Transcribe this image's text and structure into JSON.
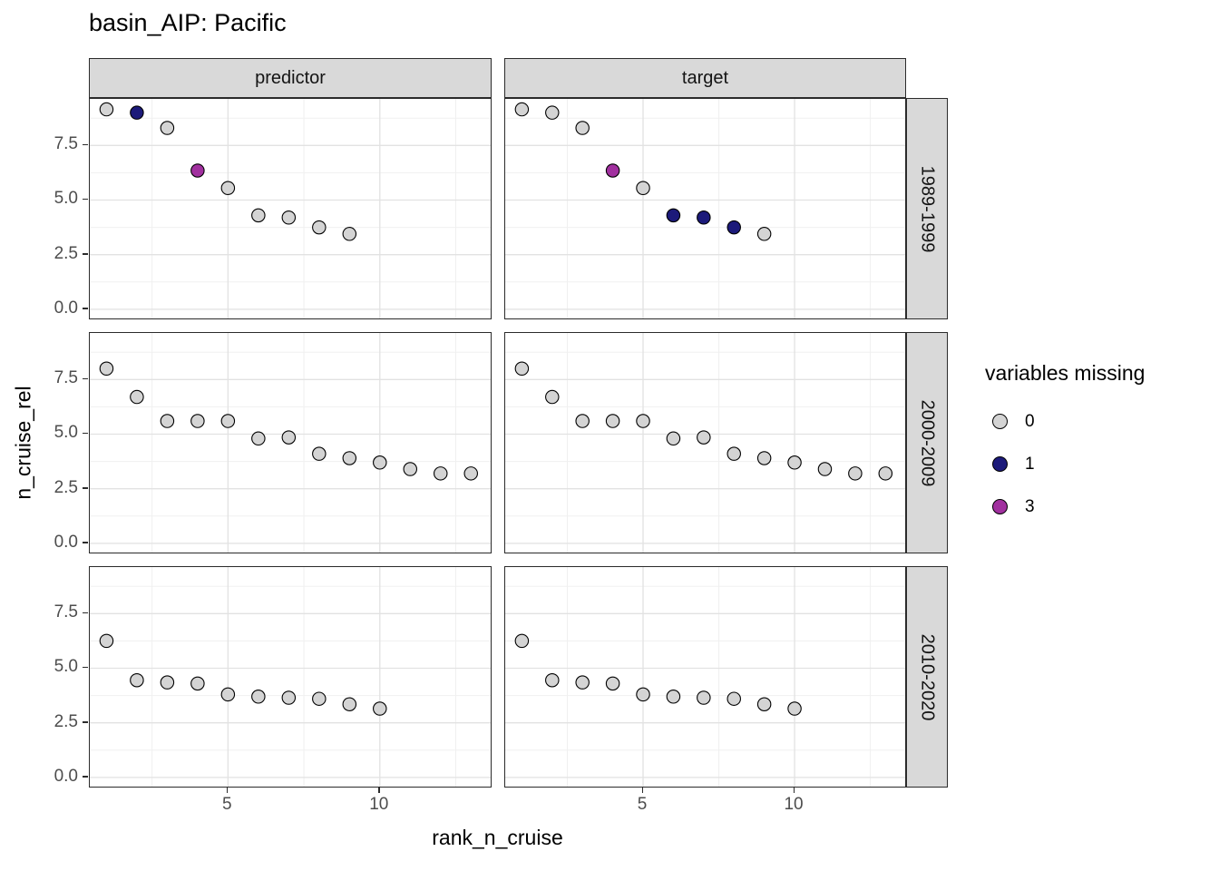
{
  "chart_data": {
    "type": "scatter",
    "title": "basin_AIP: Pacific",
    "xlabel": "rank_n_cruise",
    "ylabel": "n_cruise_rel",
    "xlim": [
      0.45,
      13.65
    ],
    "ylim": [
      -0.42,
      9.63
    ],
    "x_ticks": [
      5,
      10
    ],
    "x_tick_labels": [
      "5",
      "10"
    ],
    "x_minor": [
      2.5,
      7.5,
      12.5
    ],
    "y_ticks": [
      0,
      2.5,
      5,
      7.5
    ],
    "y_tick_labels": [
      "0.0",
      "2.5",
      "5.0",
      "7.5"
    ],
    "y_minor": [
      1.25,
      3.75,
      6.25,
      8.75
    ],
    "grid": true,
    "legend_position": "right",
    "facet_cols": [
      "predictor",
      "target"
    ],
    "facet_rows": [
      "1989-1999",
      "2000-2009",
      "2010-2020"
    ],
    "legend": {
      "title": "variables missing",
      "items": [
        {
          "label": "0",
          "color": "#d4d4d4"
        },
        {
          "label": "1",
          "color": "#1c1a7a"
        },
        {
          "label": "3",
          "color": "#a1309f"
        }
      ]
    },
    "panels": [
      {
        "col": "predictor",
        "row": "1989-1999",
        "points": [
          [
            1,
            9.15,
            0
          ],
          [
            2,
            9.0,
            1
          ],
          [
            3,
            8.3,
            0
          ],
          [
            4,
            6.35,
            3
          ],
          [
            5,
            5.55,
            0
          ],
          [
            6,
            4.3,
            0
          ],
          [
            7,
            4.2,
            0
          ],
          [
            8,
            3.75,
            0
          ],
          [
            9,
            3.45,
            0
          ]
        ]
      },
      {
        "col": "target",
        "row": "1989-1999",
        "points": [
          [
            1,
            9.15,
            0
          ],
          [
            2,
            9.0,
            0
          ],
          [
            3,
            8.3,
            0
          ],
          [
            4,
            6.35,
            3
          ],
          [
            5,
            5.55,
            0
          ],
          [
            6,
            4.3,
            1
          ],
          [
            7,
            4.2,
            1
          ],
          [
            8,
            3.75,
            1
          ],
          [
            9,
            3.45,
            0
          ]
        ]
      },
      {
        "col": "predictor",
        "row": "2000-2009",
        "points": [
          [
            1,
            8.0,
            0
          ],
          [
            2,
            6.7,
            0
          ],
          [
            3,
            5.6,
            0
          ],
          [
            4,
            5.6,
            0
          ],
          [
            5,
            5.6,
            0
          ],
          [
            6,
            4.8,
            0
          ],
          [
            7,
            4.85,
            0
          ],
          [
            8,
            4.1,
            0
          ],
          [
            9,
            3.9,
            0
          ],
          [
            10,
            3.7,
            0
          ],
          [
            11,
            3.4,
            0
          ],
          [
            12,
            3.2,
            0
          ],
          [
            13,
            3.2,
            0
          ]
        ]
      },
      {
        "col": "target",
        "row": "2000-2009",
        "points": [
          [
            1,
            8.0,
            0
          ],
          [
            2,
            6.7,
            0
          ],
          [
            3,
            5.6,
            0
          ],
          [
            4,
            5.6,
            0
          ],
          [
            5,
            5.6,
            0
          ],
          [
            6,
            4.8,
            0
          ],
          [
            7,
            4.85,
            0
          ],
          [
            8,
            4.1,
            0
          ],
          [
            9,
            3.9,
            0
          ],
          [
            10,
            3.7,
            0
          ],
          [
            11,
            3.4,
            0
          ],
          [
            12,
            3.2,
            0
          ],
          [
            13,
            3.2,
            0
          ]
        ]
      },
      {
        "col": "predictor",
        "row": "2010-2020",
        "points": [
          [
            1,
            6.25,
            0
          ],
          [
            2,
            4.45,
            0
          ],
          [
            3,
            4.35,
            0
          ],
          [
            4,
            4.3,
            0
          ],
          [
            5,
            3.8,
            0
          ],
          [
            6,
            3.7,
            0
          ],
          [
            7,
            3.65,
            0
          ],
          [
            8,
            3.6,
            0
          ],
          [
            9,
            3.35,
            0
          ],
          [
            10,
            3.15,
            0
          ]
        ]
      },
      {
        "col": "target",
        "row": "2010-2020",
        "points": [
          [
            1,
            6.25,
            0
          ],
          [
            2,
            4.45,
            0
          ],
          [
            3,
            4.35,
            0
          ],
          [
            4,
            4.3,
            0
          ],
          [
            5,
            3.8,
            0
          ],
          [
            6,
            3.7,
            0
          ],
          [
            7,
            3.65,
            0
          ],
          [
            8,
            3.6,
            0
          ],
          [
            9,
            3.35,
            0
          ],
          [
            10,
            3.15,
            0
          ]
        ]
      }
    ]
  }
}
